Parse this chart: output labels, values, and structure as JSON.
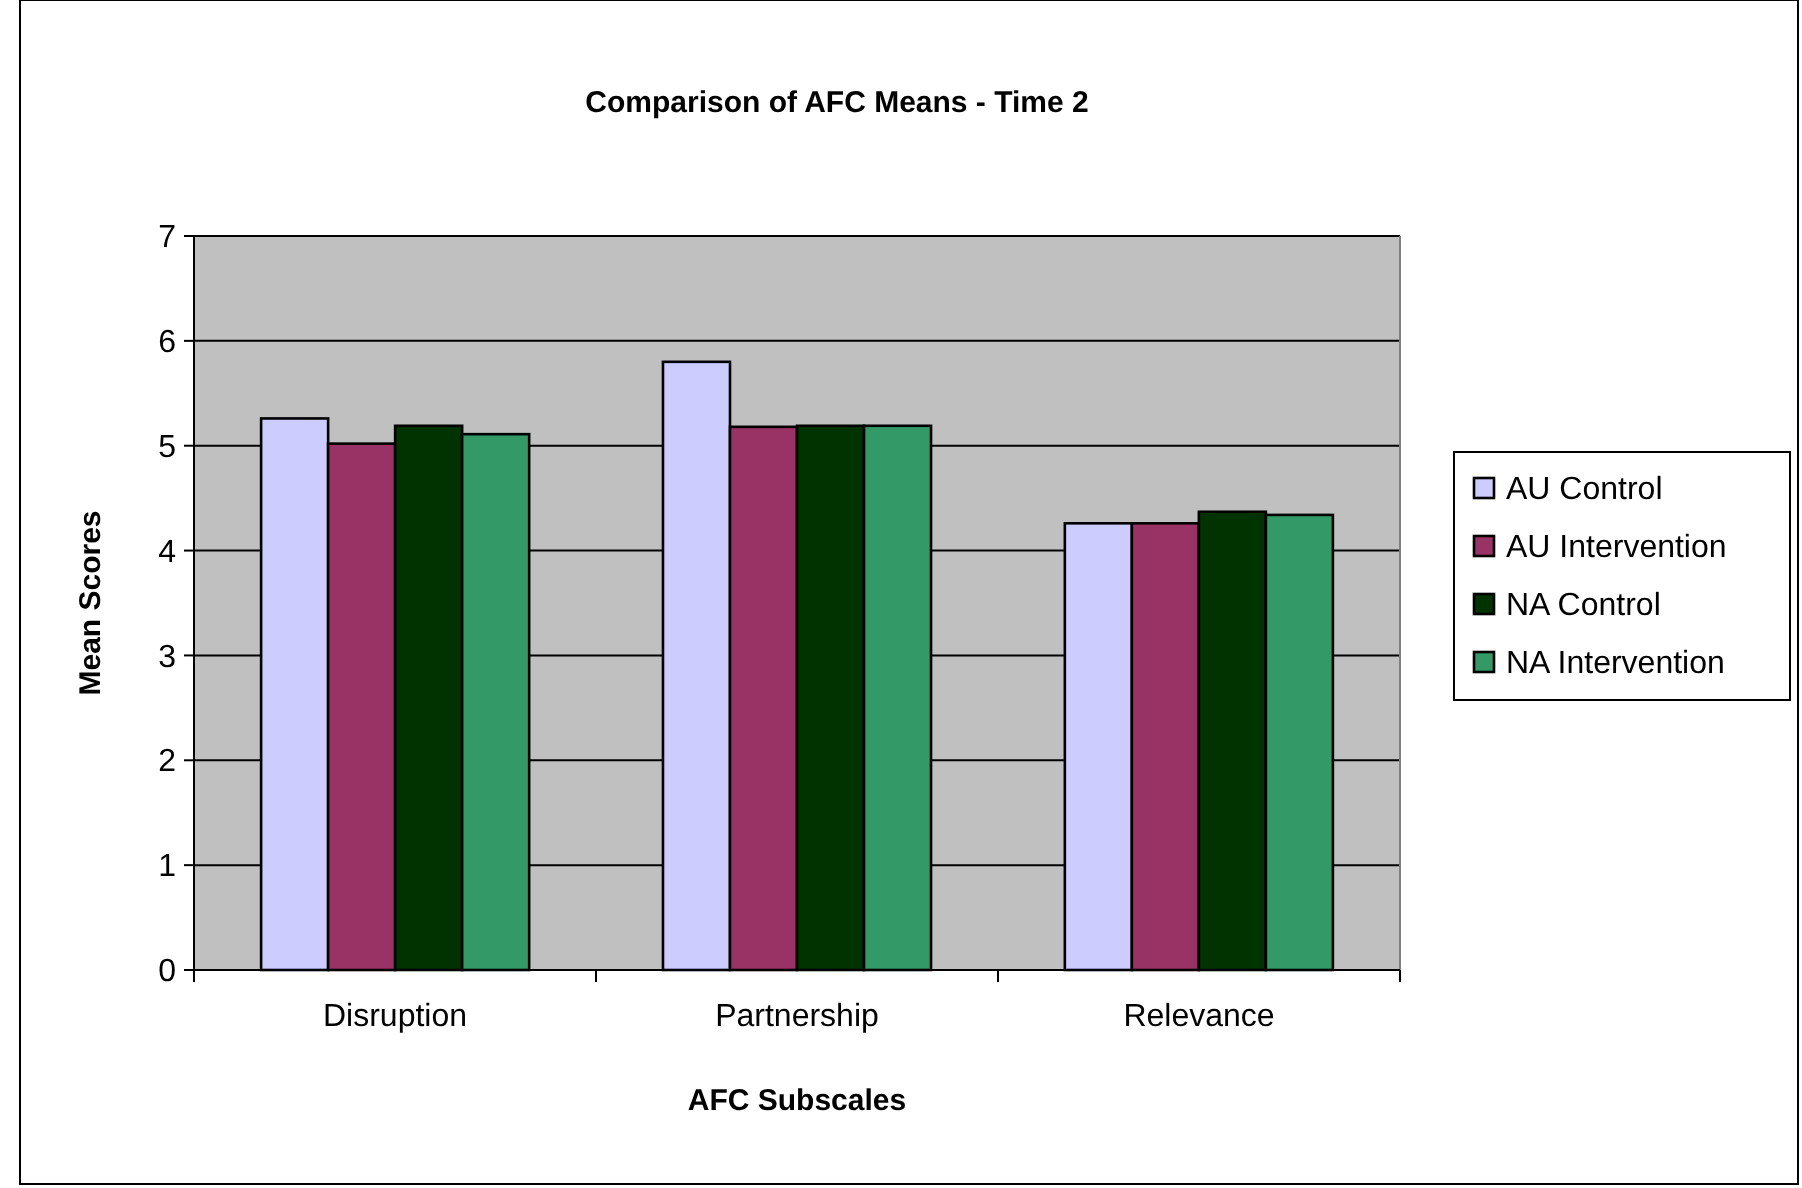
{
  "chart_data": {
    "type": "bar",
    "title": "Comparison of AFC Means - Time 2",
    "xlabel": "AFC Subscales",
    "ylabel": "Mean Scores",
    "categories": [
      "Disruption",
      "Partnership",
      "Relevance"
    ],
    "series": [
      {
        "name": "AU Control",
        "color": "#ccccff",
        "values": [
          5.26,
          5.8,
          4.26
        ]
      },
      {
        "name": "AU Intervention",
        "color": "#993366",
        "values": [
          5.02,
          5.18,
          4.26
        ]
      },
      {
        "name": "NA Control",
        "color": "#003300",
        "values": [
          5.19,
          5.19,
          4.37
        ]
      },
      {
        "name": "NA Intervention",
        "color": "#339966",
        "values": [
          5.11,
          5.19,
          4.34
        ]
      }
    ],
    "ylim": [
      0,
      7
    ],
    "yticks": [
      0,
      1,
      2,
      3,
      4,
      5,
      6,
      7
    ],
    "grid": "y",
    "legend": "right"
  }
}
